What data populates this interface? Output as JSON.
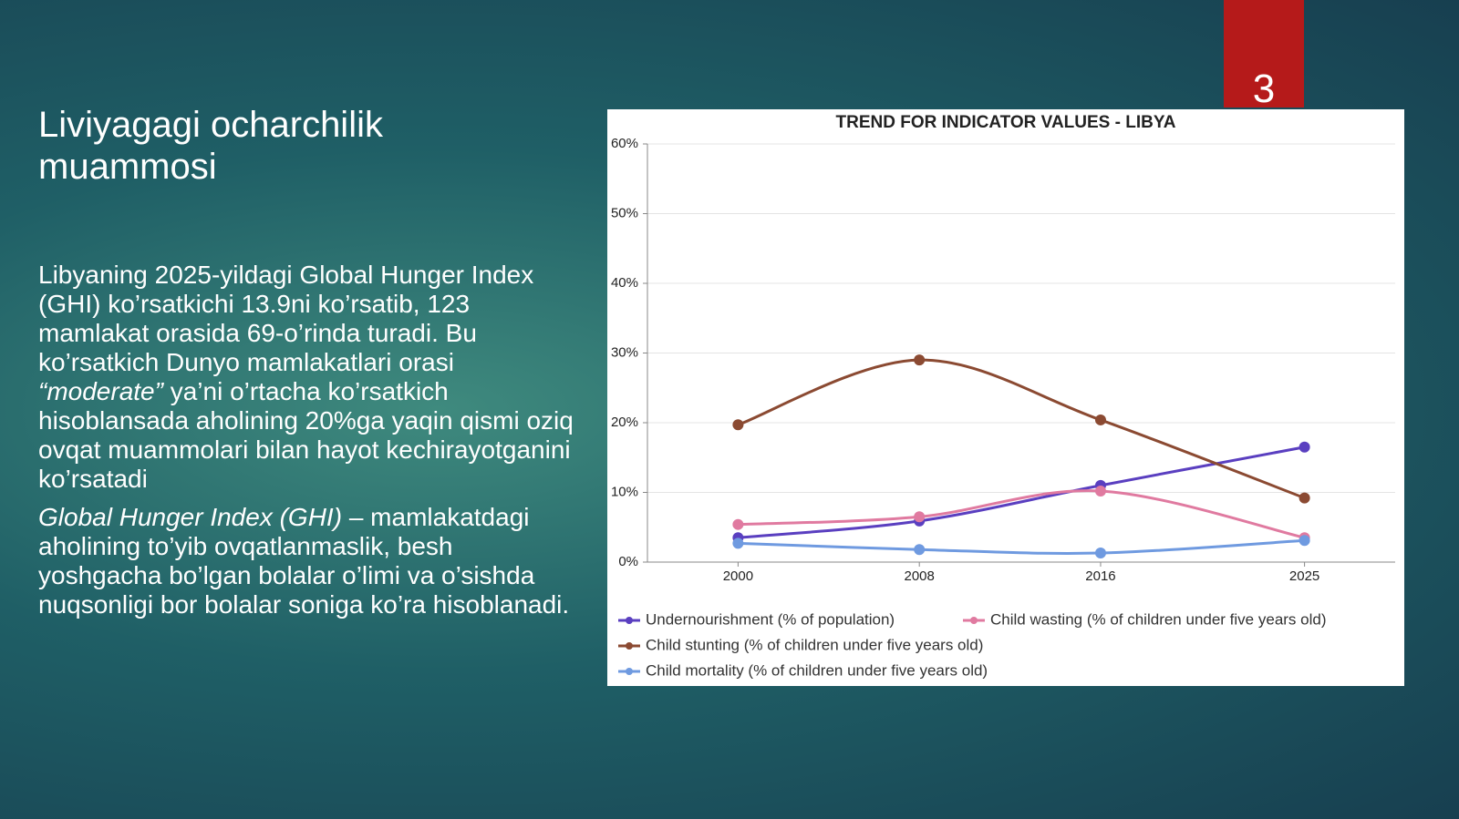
{
  "slide": {
    "page_number": "3",
    "title": "Liviyagagi ocharchilik muammosi",
    "paragraphs": [
      [
        {
          "text": "Libyaning 2025-yildagi Global Hunger Index (GHI) ko’rsatkichi 13.9ni ko’rsatib, 123 mamlakat orasida 69-o’rinda turadi. Bu ko’rsatkich Dunyo mamlakatlari orasi ",
          "italic": false
        },
        {
          "text": "“moderate”",
          "italic": true
        },
        {
          "text": " ya’ni o’rtacha ko’rsatkich hisoblansada aholining 20%ga yaqin qismi oziq ovqat muammolari bilan hayot kechirayotganini ko’rsatadi",
          "italic": false
        }
      ],
      [
        {
          "text": "Global Hunger Index (GHI)",
          "italic": true
        },
        {
          "text": " – mamlakatdagi aholining to’yib ovqatlanmaslik, besh yoshgacha bo’lgan bolalar o’limi va o’sishda nuqsonligi bor bolalar soniga ko’ra hisoblanadi.",
          "italic": false
        }
      ]
    ]
  },
  "chart_data": {
    "type": "line",
    "title": "TREND FOR INDICATOR VALUES - LIBYA",
    "x": [
      2000,
      2008,
      2016,
      2025
    ],
    "xlim": [
      1996,
      2029
    ],
    "xticks": [
      2000,
      2008,
      2016,
      2025
    ],
    "ylim": [
      0,
      60
    ],
    "yticks": [
      {
        "value": 0,
        "label": "0%"
      },
      {
        "value": 10,
        "label": "10%"
      },
      {
        "value": 20,
        "label": "20%"
      },
      {
        "value": 30,
        "label": "30%"
      },
      {
        "value": 40,
        "label": "40%"
      },
      {
        "value": 50,
        "label": "50%"
      },
      {
        "value": 60,
        "label": "60%"
      }
    ],
    "grid": true,
    "smooth": true,
    "legend": "bottom",
    "series": [
      {
        "name": "Undernourishment (% of population)",
        "color": "#5a3fc0",
        "values": [
          3.5,
          5.9,
          11.0,
          16.5
        ]
      },
      {
        "name": "Child wasting (% of children under five years old)",
        "color": "#e07aa0",
        "values": [
          5.4,
          6.5,
          10.2,
          3.5
        ]
      },
      {
        "name": "Child stunting (% of children under five years old)",
        "color": "#8b4a32",
        "values": [
          19.7,
          29.0,
          20.4,
          9.2
        ]
      },
      {
        "name": "Child mortality (% of children under five years old)",
        "color": "#6f9ae0",
        "values": [
          2.7,
          1.8,
          1.3,
          3.1
        ]
      }
    ]
  }
}
